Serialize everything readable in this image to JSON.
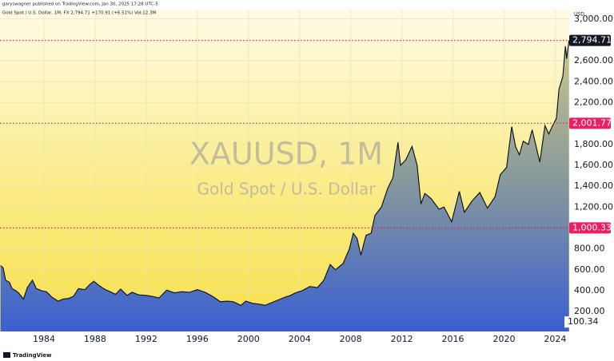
{
  "chart_data": {
    "type": "area",
    "publisher_line": "garyswagner published on TradingView.com, Jan 30, 2025 17:28 UTC-5",
    "symbol_line": "Gold Spot / U.S. Dollar, 1M, FX  2,794.71  +170.91 (+6.51%)  Vol:12.3M",
    "watermark_symbol": "XAUUSD, 1M",
    "watermark_name": "Gold Spot / U.S. Dollar",
    "currency": "USD",
    "brand": "TradingView",
    "name": "Gold Spot / U.S. Dollar",
    "x": [
      1980.6,
      1980.8,
      1981.0,
      1981.3,
      1981.5,
      1981.8,
      1982.0,
      1982.4,
      1982.7,
      1983.1,
      1983.4,
      1983.8,
      1984.2,
      1984.6,
      1985.1,
      1985.5,
      1985.9,
      1986.3,
      1986.7,
      1987.2,
      1987.6,
      1987.9,
      1988.3,
      1988.8,
      1989.2,
      1989.6,
      1990.0,
      1990.5,
      1990.9,
      1991.4,
      1992.0,
      1992.5,
      1993.0,
      1993.6,
      1994.2,
      1994.8,
      1995.4,
      1996.0,
      1996.6,
      1997.2,
      1997.8,
      1998.3,
      1998.8,
      1999.4,
      1999.8,
      2000.3,
      2000.9,
      2001.3,
      2001.8,
      2002.3,
      2002.9,
      2003.2,
      2003.7,
      2004.2,
      2004.8,
      2005.4,
      2005.9,
      2006.4,
      2006.8,
      2007.4,
      2007.9,
      2008.2,
      2008.5,
      2008.8,
      2009.2,
      2009.6,
      2009.9,
      2010.4,
      2010.9,
      2011.3,
      2011.7,
      2011.9,
      2012.3,
      2012.8,
      2013.2,
      2013.5,
      2013.8,
      2014.3,
      2014.9,
      2015.3,
      2015.9,
      2016.5,
      2016.9,
      2017.5,
      2018.1,
      2018.7,
      2019.3,
      2019.7,
      2020.2,
      2020.6,
      2020.9,
      2021.2,
      2021.5,
      2021.9,
      2022.2,
      2022.8,
      2023.2,
      2023.5,
      2023.8,
      2024.1,
      2024.3,
      2024.6,
      2024.8,
      2024.9,
      2025.08
    ],
    "values": [
      640,
      620,
      500,
      480,
      420,
      400,
      380,
      320,
      430,
      500,
      420,
      400,
      390,
      340,
      300,
      320,
      325,
      345,
      420,
      410,
      460,
      490,
      450,
      410,
      390,
      365,
      415,
      355,
      385,
      360,
      355,
      345,
      330,
      405,
      380,
      390,
      385,
      410,
      385,
      345,
      295,
      300,
      295,
      260,
      300,
      280,
      270,
      260,
      285,
      310,
      340,
      350,
      380,
      400,
      440,
      430,
      500,
      650,
      600,
      660,
      800,
      950,
      900,
      740,
      930,
      950,
      1120,
      1200,
      1380,
      1480,
      1820,
      1600,
      1650,
      1780,
      1600,
      1230,
      1330,
      1280,
      1180,
      1200,
      1060,
      1350,
      1150,
      1260,
      1340,
      1190,
      1300,
      1510,
      1580,
      1970,
      1780,
      1700,
      1830,
      1800,
      1940,
      1630,
      1980,
      1900,
      1980,
      2050,
      2330,
      2450,
      2740,
      2620,
      2795
    ],
    "xlim": [
      1980.56,
      2025.1
    ],
    "xticks": [
      1984,
      1988,
      1992,
      1996,
      2000,
      2004,
      2008,
      2012,
      2016,
      2020,
      2024
    ],
    "ylim": [
      10,
      3090
    ],
    "yticks": [
      {
        "value": 200,
        "label": "200.00"
      },
      {
        "value": 400,
        "label": "400.00"
      },
      {
        "value": 600,
        "label": "600.00"
      },
      {
        "value": 800,
        "label": "800.00"
      },
      {
        "value": 1200,
        "label": "1,200.00"
      },
      {
        "value": 1400,
        "label": "1,400.00"
      },
      {
        "value": 1600,
        "label": "1,600.00"
      },
      {
        "value": 1800,
        "label": "1,800.00"
      },
      {
        "value": 2200,
        "label": "2,200.00"
      },
      {
        "value": 2400,
        "label": "2,400.00"
      },
      {
        "value": 2600,
        "label": "2,600.00"
      },
      {
        "value": 3000,
        "label": "3,000.00"
      }
    ],
    "grid": true,
    "price_lines": [
      {
        "value": 2794.71,
        "label": "2,794.71",
        "color": "#131722"
      },
      {
        "value": 2001.77,
        "label": "2,001.77",
        "color": "#e91e63"
      },
      {
        "value": 1000.33,
        "label": "1,000.33",
        "color": "#e91e63"
      }
    ],
    "line_color": "#e91e63",
    "scale_label": {
      "value": 100.34,
      "label": "100.34"
    }
  }
}
